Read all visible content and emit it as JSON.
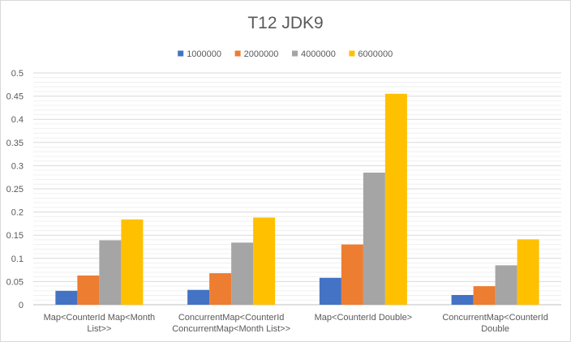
{
  "chart_data": {
    "type": "bar",
    "title": "T12 JDK9",
    "xlabel": "",
    "ylabel": "",
    "categories": [
      [
        "Map<CounterId Map<Month",
        "List>>"
      ],
      [
        "ConcurrentMap<CounterId",
        "ConcurrentMap<Month List>>"
      ],
      [
        "Map<CounterId Double>"
      ],
      [
        "ConcurrentMap<CounterId",
        "Double"
      ]
    ],
    "series": [
      {
        "name": "1000000",
        "color": "#4472c4",
        "values": [
          0.03,
          0.032,
          0.058,
          0.021
        ]
      },
      {
        "name": "2000000",
        "color": "#ed7d31",
        "values": [
          0.063,
          0.068,
          0.13,
          0.04
        ]
      },
      {
        "name": "4000000",
        "color": "#a5a5a5",
        "values": [
          0.139,
          0.134,
          0.285,
          0.085
        ]
      },
      {
        "name": "6000000",
        "color": "#ffc000",
        "values": [
          0.184,
          0.188,
          0.455,
          0.141
        ]
      }
    ],
    "ylim": [
      0,
      0.5
    ],
    "yticks": [
      "0",
      "0.05",
      "0.1",
      "0.15",
      "0.2",
      "0.25",
      "0.3",
      "0.35",
      "0.4",
      "0.45",
      "0.5"
    ],
    "grid": true,
    "legend_position": "top"
  }
}
